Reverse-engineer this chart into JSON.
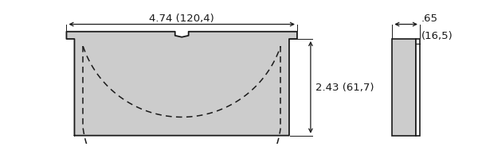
{
  "bg_color": "#ffffff",
  "pad_color": "#cccccc",
  "line_color": "#1a1a1a",
  "dim_color": "#1a1a1a",
  "width_label": "4.74 (120,4)",
  "height_label": "2.43 (61,7)",
  "thickness_label1": ".65",
  "thickness_label2": "(16,5)",
  "font_size": 9.5,
  "fig_w": 6.0,
  "fig_h": 2.05,
  "dpi": 100
}
